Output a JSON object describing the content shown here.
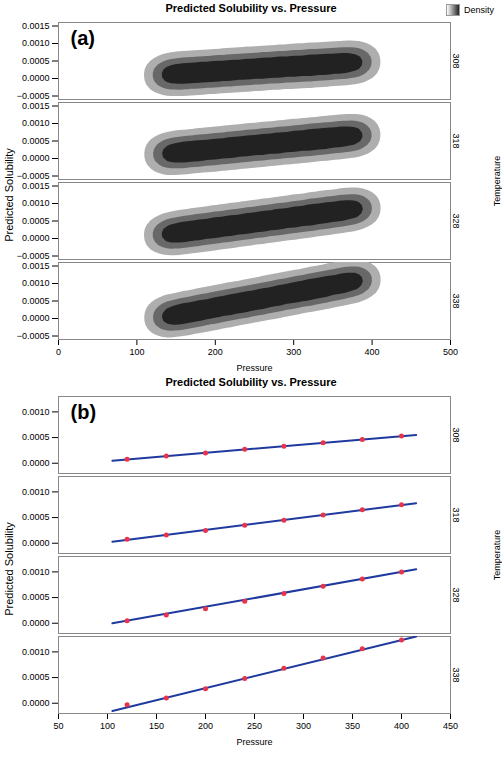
{
  "chart_data": [
    {
      "type": "density",
      "title": "Predicted Solubility vs. Pressure",
      "panel_label": "(a)",
      "x_label": "Pressure",
      "y_label": "Predicted Solubility",
      "facet_label": "Temperature",
      "color_label": "Density",
      "xlim": [
        0,
        500
      ],
      "xticks": [
        0,
        100,
        200,
        300,
        400,
        500
      ],
      "ylim": [
        -0.0006,
        0.0016
      ],
      "yticks": [
        -0.0005,
        0,
        0.0005,
        0.001,
        0.0015
      ],
      "grid": false,
      "color": "#222222",
      "series": [
        {
          "name": "308",
          "x": [
            130,
            150,
            170,
            190,
            210,
            230,
            250,
            270,
            290,
            310,
            330,
            350,
            370,
            390
          ],
          "values": [
            0.0001,
            0.00013,
            0.00016,
            0.00019,
            0.00022,
            0.00025,
            0.00028,
            0.00031,
            0.00034,
            0.00036,
            0.00039,
            0.00042,
            0.00045,
            0.00048
          ]
        },
        {
          "name": "318",
          "x": [
            130,
            150,
            170,
            190,
            210,
            230,
            250,
            270,
            290,
            310,
            330,
            350,
            370,
            390
          ],
          "values": [
            0.00012,
            0.00016,
            0.00021,
            0.00025,
            0.00029,
            0.00034,
            0.00038,
            0.00042,
            0.00047,
            0.00051,
            0.00055,
            0.0006,
            0.00064,
            0.00068
          ]
        },
        {
          "name": "328",
          "x": [
            130,
            150,
            170,
            190,
            210,
            230,
            250,
            270,
            290,
            310,
            330,
            350,
            370,
            390
          ],
          "values": [
            0.0001,
            0.00016,
            0.00022,
            0.00028,
            0.00034,
            0.0004,
            0.00046,
            0.00052,
            0.00058,
            0.00064,
            0.0007,
            0.00076,
            0.00082,
            0.00088
          ]
        },
        {
          "name": "338",
          "x": [
            130,
            150,
            170,
            190,
            210,
            230,
            250,
            270,
            290,
            310,
            330,
            350,
            370,
            390
          ],
          "values": [
            2e-05,
            0.0001,
            0.00019,
            0.00027,
            0.00036,
            0.00044,
            0.00053,
            0.00061,
            0.0007,
            0.00078,
            0.00087,
            0.00095,
            0.00104,
            0.00112
          ]
        }
      ]
    },
    {
      "type": "line",
      "title": "Predicted Solubility vs. Pressure",
      "panel_label": "(b)",
      "x_label": "Pressure",
      "y_label": "Predicted Solubility",
      "facet_label": "Temperature",
      "xlim": [
        50,
        450
      ],
      "xticks": [
        50,
        100,
        150,
        200,
        250,
        300,
        350,
        400,
        450
      ],
      "ylim": [
        -0.0002,
        0.0013
      ],
      "yticks": [
        0,
        0.0005,
        0.001
      ],
      "grid": false,
      "color": "#1f3a9e",
      "marker": "circle",
      "marker_color": "#e8334a",
      "series": [
        {
          "name": "308",
          "x": [
            120,
            160,
            200,
            240,
            280,
            320,
            360,
            400
          ],
          "values": [
            8e-05,
            0.00014,
            0.0002,
            0.00027,
            0.00033,
            0.0004,
            0.00046,
            0.00053
          ],
          "fit_x": [
            105,
            415
          ],
          "fit_values": [
            5e-05,
            0.00055
          ]
        },
        {
          "name": "318",
          "x": [
            120,
            160,
            200,
            240,
            280,
            320,
            360,
            400
          ],
          "values": [
            8e-05,
            0.00016,
            0.00025,
            0.00035,
            0.00045,
            0.00055,
            0.00065,
            0.00075
          ],
          "fit_x": [
            105,
            415
          ],
          "fit_values": [
            3e-05,
            0.00078
          ]
        },
        {
          "name": "328",
          "x": [
            120,
            160,
            200,
            240,
            280,
            320,
            360,
            400
          ],
          "values": [
            5e-05,
            0.00016,
            0.00028,
            0.00043,
            0.00058,
            0.00072,
            0.00086,
            0.001
          ],
          "fit_x": [
            105,
            415
          ],
          "fit_values": [
            0.0,
            0.00105
          ]
        },
        {
          "name": "338",
          "x": [
            120,
            160,
            200,
            240,
            280,
            320,
            360,
            400
          ],
          "values": [
            -3e-05,
            0.0001,
            0.00028,
            0.00048,
            0.00068,
            0.00088,
            0.00106,
            0.00123
          ],
          "fit_x": [
            105,
            415
          ],
          "fit_values": [
            -0.00015,
            0.0013
          ]
        }
      ]
    }
  ]
}
